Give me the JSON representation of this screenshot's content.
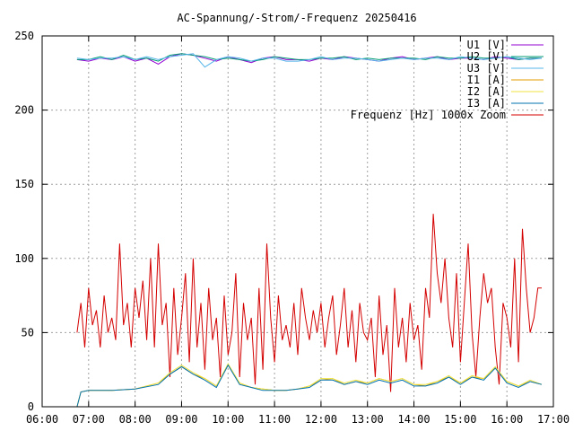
{
  "chart_data": {
    "type": "line",
    "title": "AC-Spannung/-Strom/-Frequenz 20250416",
    "xlabel": "",
    "ylabel": "",
    "xlim": [
      "06:00",
      "17:00"
    ],
    "ylim": [
      0,
      250
    ],
    "grid": true,
    "legend_position": "top-right",
    "x_tick_labels": [
      "06:00",
      "07:00",
      "08:00",
      "09:00",
      "10:00",
      "11:00",
      "12:00",
      "13:00",
      "14:00",
      "15:00",
      "16:00",
      "17:00"
    ],
    "y_tick_labels": [
      "0",
      "50",
      "100",
      "150",
      "200",
      "250"
    ],
    "series": [
      {
        "name": "U1 [V]",
        "color": "#9400d3",
        "x": [
          "06:45",
          "07:00",
          "07:15",
          "07:30",
          "07:45",
          "08:00",
          "08:15",
          "08:30",
          "08:45",
          "09:00",
          "09:15",
          "09:30",
          "09:45",
          "10:00",
          "10:15",
          "10:30",
          "10:45",
          "11:00",
          "11:15",
          "11:30",
          "11:45",
          "12:00",
          "12:15",
          "12:30",
          "12:45",
          "13:00",
          "13:15",
          "13:30",
          "13:45",
          "14:00",
          "14:15",
          "14:30",
          "14:45",
          "15:00",
          "15:15",
          "15:30",
          "15:45",
          "16:00",
          "16:15",
          "16:30",
          "16:45"
        ],
        "values": [
          234,
          233,
          235,
          234,
          236,
          233,
          235,
          231,
          236,
          238,
          237,
          235,
          233,
          236,
          234,
          232,
          235,
          236,
          234,
          234,
          233,
          235,
          234,
          236,
          235,
          234,
          233,
          235,
          236,
          234,
          235,
          236,
          234,
          235,
          235,
          234,
          236,
          235,
          234,
          235,
          235
        ]
      },
      {
        "name": "U2 [V]",
        "color": "#009e73",
        "x": [
          "06:45",
          "07:00",
          "07:15",
          "07:30",
          "07:45",
          "08:00",
          "08:15",
          "08:30",
          "08:45",
          "09:00",
          "09:15",
          "09:30",
          "09:45",
          "10:00",
          "10:15",
          "10:30",
          "10:45",
          "11:00",
          "11:15",
          "11:30",
          "11:45",
          "12:00",
          "12:15",
          "12:30",
          "12:45",
          "13:00",
          "13:15",
          "13:30",
          "13:45",
          "14:00",
          "14:15",
          "14:30",
          "14:45",
          "15:00",
          "15:15",
          "15:30",
          "15:45",
          "16:00",
          "16:15",
          "16:30",
          "16:45"
        ],
        "values": [
          234,
          234,
          236,
          234,
          237,
          234,
          235,
          233,
          237,
          238,
          237,
          236,
          234,
          235,
          234,
          233,
          234,
          236,
          235,
          234,
          234,
          235,
          235,
          236,
          234,
          235,
          234,
          235,
          235,
          235,
          234,
          236,
          235,
          235,
          236,
          235,
          235,
          236,
          234,
          235,
          235
        ]
      },
      {
        "name": "U3 [V]",
        "color": "#56b4e9",
        "x": [
          "06:45",
          "07:00",
          "07:15",
          "07:30",
          "07:45",
          "08:00",
          "08:15",
          "08:30",
          "08:45",
          "09:00",
          "09:15",
          "09:30",
          "09:45",
          "10:00",
          "10:15",
          "10:30",
          "10:45",
          "11:00",
          "11:15",
          "11:30",
          "11:45",
          "12:00",
          "12:15",
          "12:30",
          "12:45",
          "13:00",
          "13:15",
          "13:30",
          "13:45",
          "14:00",
          "14:15",
          "14:30",
          "14:45",
          "15:00",
          "15:15",
          "15:30",
          "15:45",
          "16:00",
          "16:15",
          "16:30",
          "16:45"
        ],
        "values": [
          235,
          234,
          235,
          235,
          236,
          234,
          236,
          234,
          236,
          237,
          238,
          229,
          234,
          236,
          235,
          233,
          235,
          235,
          233,
          233,
          234,
          236,
          234,
          235,
          235,
          234,
          233,
          234,
          235,
          234,
          235,
          235,
          234,
          236,
          235,
          234,
          235,
          236,
          235,
          234,
          235
        ]
      },
      {
        "name": "I1 [A]",
        "color": "#e69f00",
        "x": [
          "06:45",
          "06:50",
          "07:00",
          "07:30",
          "08:00",
          "08:30",
          "08:45",
          "09:00",
          "09:15",
          "09:30",
          "09:45",
          "10:00",
          "10:15",
          "10:30",
          "10:45",
          "11:00",
          "11:15",
          "11:30",
          "11:45",
          "12:00",
          "12:15",
          "12:30",
          "12:45",
          "13:00",
          "13:15",
          "13:30",
          "13:45",
          "14:00",
          "14:15",
          "14:30",
          "14:45",
          "15:00",
          "15:15",
          "15:30",
          "15:45",
          "16:00",
          "16:15",
          "16:30",
          "16:45"
        ],
        "values": [
          0,
          10,
          11,
          11,
          12,
          16,
          22,
          27,
          22,
          19,
          14,
          28,
          16,
          13,
          12,
          11,
          11,
          12,
          14,
          18,
          19,
          15,
          17,
          16,
          19,
          17,
          19,
          15,
          14,
          17,
          20,
          16,
          20,
          19,
          26,
          17,
          14,
          17,
          15
        ]
      },
      {
        "name": "I2 [A]",
        "color": "#f0e442",
        "x": [
          "06:45",
          "06:50",
          "07:00",
          "07:30",
          "08:00",
          "08:30",
          "08:45",
          "09:00",
          "09:15",
          "09:30",
          "09:45",
          "10:00",
          "10:15",
          "10:30",
          "10:45",
          "11:00",
          "11:15",
          "11:30",
          "11:45",
          "12:00",
          "12:15",
          "12:30",
          "12:45",
          "13:00",
          "13:15",
          "13:30",
          "13:45",
          "14:00",
          "14:15",
          "14:30",
          "14:45",
          "15:00",
          "15:15",
          "15:30",
          "15:45",
          "16:00",
          "16:15",
          "16:30",
          "16:45"
        ],
        "values": [
          0,
          10,
          11,
          11,
          12,
          16,
          23,
          28,
          23,
          19,
          14,
          29,
          16,
          13,
          12,
          11,
          11,
          12,
          14,
          19,
          19,
          16,
          18,
          16,
          19,
          17,
          19,
          15,
          15,
          17,
          21,
          16,
          21,
          19,
          27,
          17,
          14,
          18,
          15
        ]
      },
      {
        "name": "I3 [A]",
        "color": "#0072b2",
        "x": [
          "06:45",
          "06:50",
          "07:00",
          "07:30",
          "08:00",
          "08:30",
          "08:45",
          "09:00",
          "09:15",
          "09:30",
          "09:45",
          "10:00",
          "10:15",
          "10:30",
          "10:45",
          "11:00",
          "11:15",
          "11:30",
          "11:45",
          "12:00",
          "12:15",
          "12:30",
          "12:45",
          "13:00",
          "13:15",
          "13:30",
          "13:45",
          "14:00",
          "14:15",
          "14:30",
          "14:45",
          "15:00",
          "15:15",
          "15:30",
          "15:45",
          "16:00",
          "16:15",
          "16:30",
          "16:45"
        ],
        "values": [
          0,
          10,
          11,
          11,
          12,
          15,
          22,
          27,
          22,
          18,
          13,
          28,
          15,
          13,
          11,
          11,
          11,
          12,
          13,
          18,
          18,
          15,
          17,
          15,
          18,
          16,
          18,
          14,
          14,
          16,
          20,
          15,
          20,
          18,
          26,
          16,
          13,
          17,
          15
        ]
      },
      {
        "name": "Frequenz [Hz] 1000x Zoom",
        "color": "#d40000",
        "x": [
          "06:45",
          "06:50",
          "06:55",
          "07:00",
          "07:05",
          "07:10",
          "07:15",
          "07:20",
          "07:25",
          "07:30",
          "07:35",
          "07:40",
          "07:45",
          "07:50",
          "07:55",
          "08:00",
          "08:05",
          "08:10",
          "08:15",
          "08:20",
          "08:25",
          "08:30",
          "08:35",
          "08:40",
          "08:45",
          "08:50",
          "08:55",
          "09:00",
          "09:05",
          "09:10",
          "09:15",
          "09:20",
          "09:25",
          "09:30",
          "09:35",
          "09:40",
          "09:45",
          "09:50",
          "09:55",
          "10:00",
          "10:05",
          "10:10",
          "10:15",
          "10:20",
          "10:25",
          "10:30",
          "10:35",
          "10:40",
          "10:45",
          "10:50",
          "10:55",
          "11:00",
          "11:05",
          "11:10",
          "11:15",
          "11:20",
          "11:25",
          "11:30",
          "11:35",
          "11:40",
          "11:45",
          "11:50",
          "11:55",
          "12:00",
          "12:05",
          "12:10",
          "12:15",
          "12:20",
          "12:25",
          "12:30",
          "12:35",
          "12:40",
          "12:45",
          "12:50",
          "12:55",
          "13:00",
          "13:05",
          "13:10",
          "13:15",
          "13:20",
          "13:25",
          "13:30",
          "13:35",
          "13:40",
          "13:45",
          "13:50",
          "13:55",
          "14:00",
          "14:05",
          "14:10",
          "14:15",
          "14:20",
          "14:25",
          "14:30",
          "14:35",
          "14:40",
          "14:45",
          "14:50",
          "14:55",
          "15:00",
          "15:05",
          "15:10",
          "15:15",
          "15:20",
          "15:25",
          "15:30",
          "15:35",
          "15:40",
          "15:45",
          "15:50",
          "15:55",
          "16:00",
          "16:05",
          "16:10",
          "16:15",
          "16:20",
          "16:25",
          "16:30",
          "16:35",
          "16:40",
          "16:45"
        ],
        "values": [
          50,
          70,
          40,
          80,
          55,
          65,
          40,
          75,
          50,
          60,
          45,
          110,
          55,
          70,
          40,
          80,
          60,
          85,
          45,
          100,
          40,
          110,
          55,
          70,
          20,
          80,
          35,
          60,
          90,
          30,
          100,
          40,
          70,
          25,
          80,
          45,
          60,
          20,
          75,
          35,
          50,
          90,
          20,
          70,
          45,
          60,
          15,
          80,
          25,
          110,
          60,
          30,
          75,
          45,
          55,
          40,
          70,
          35,
          80,
          60,
          45,
          65,
          50,
          70,
          40,
          60,
          75,
          35,
          55,
          80,
          40,
          65,
          30,
          70,
          50,
          45,
          60,
          20,
          75,
          35,
          55,
          10,
          80,
          40,
          60,
          30,
          70,
          45,
          55,
          25,
          80,
          60,
          130,
          90,
          70,
          100,
          60,
          40,
          90,
          30,
          70,
          110,
          50,
          20,
          60,
          90,
          70,
          80,
          40,
          15,
          70,
          60,
          40,
          100,
          30,
          120,
          80,
          50,
          60,
          80,
          80
        ]
      }
    ]
  }
}
